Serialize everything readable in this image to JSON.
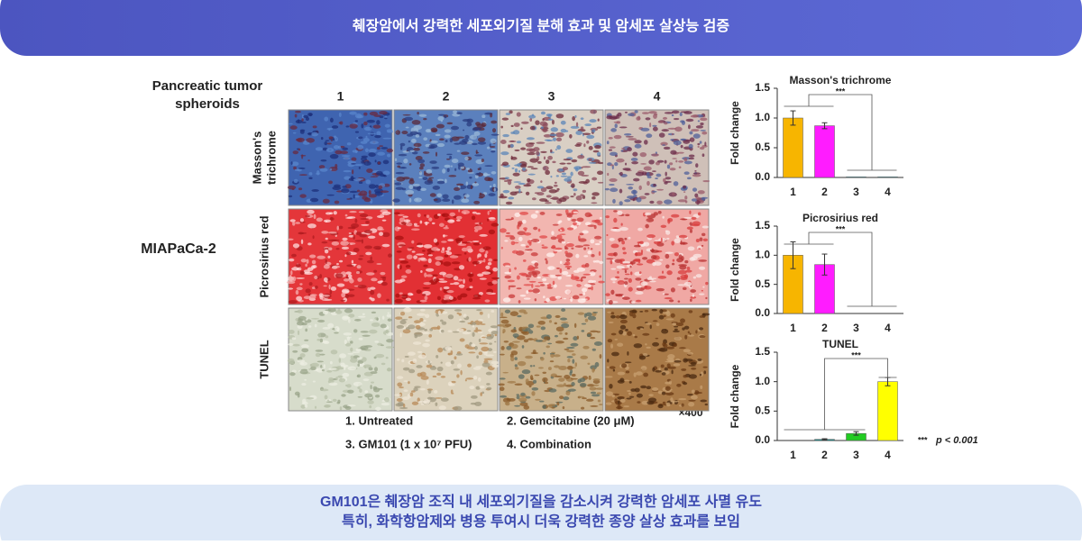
{
  "header": {
    "title": "췌장암에서 강력한 세포외기질 분해 효과 및 암세포 살상능 검증"
  },
  "figure": {
    "spheroid_label": [
      "Pancreatic tumor",
      "spheroids"
    ],
    "cell_line": "MIAPaCa-2",
    "columns": [
      "1",
      "2",
      "3",
      "4"
    ],
    "rows": [
      [
        "Masson's",
        "trichrome"
      ],
      [
        "Picrosirius red"
      ],
      [
        "TUNEL"
      ]
    ],
    "magnification": "×400",
    "legend": [
      "1. Untreated",
      "2. Gemcitabine (20 μM)",
      "3. GM101 (1 x 10⁷ PFU)",
      "4. Combination"
    ],
    "footnote": {
      "marker": "***",
      "text": "p < 0.001"
    }
  },
  "chart_data": [
    {
      "type": "bar",
      "title": "Masson's trichrome",
      "ylabel": "Fold change",
      "significance": "***",
      "categories": [
        "1",
        "2",
        "3",
        "4"
      ],
      "values": [
        1.0,
        0.87,
        0.01,
        0.01
      ],
      "errors": [
        0.12,
        0.05,
        0,
        0
      ],
      "colors": [
        "#f7b500",
        "#ff1cff",
        "#20b0c0",
        "#20b0c0"
      ],
      "ylim": [
        0,
        1.5
      ],
      "yticks": [
        {
          "value": 0,
          "label": "0.0"
        },
        0.5,
        {
          "value": 1,
          "label": "1.0"
        },
        1.5
      ]
    },
    {
      "type": "bar",
      "title": "Picrosirius red",
      "ylabel": "Fold change",
      "significance": "***",
      "categories": [
        "1",
        "2",
        "3",
        "4"
      ],
      "values": [
        1.0,
        0.84,
        0,
        0
      ],
      "errors": [
        0.23,
        0.18,
        0,
        0
      ],
      "colors": [
        "#f7b500",
        "#ff1cff",
        "#20b0c0",
        "#20b0c0"
      ],
      "ylim": [
        0,
        1.5
      ],
      "yticks": [
        {
          "value": 0,
          "label": "0.0"
        },
        0.5,
        {
          "value": 1,
          "label": "1.0"
        },
        1.5
      ]
    },
    {
      "type": "bar",
      "title": "TUNEL",
      "ylabel": "Fold change",
      "significance": "***",
      "categories": [
        "1",
        "2",
        "3",
        "4"
      ],
      "values": [
        0,
        0.02,
        0.12,
        1.0
      ],
      "errors": [
        0,
        0.01,
        0.03,
        0.07
      ],
      "colors": [
        "#f7b500",
        "#1a9090",
        "#22cc22",
        "#ffff00"
      ],
      "ylim": [
        0,
        1.5
      ],
      "yticks": [
        {
          "value": 0,
          "label": "0.0"
        },
        0.5,
        {
          "value": 1,
          "label": "1.0"
        },
        1.5
      ]
    }
  ],
  "footer": {
    "lines": [
      "GM101은 췌장암 조직 내 세포외기질을 감소시켜 강력한 암세포 사멸 유도",
      "특히, 화학항암제와 병용 투여시 더욱 강력한 종양 살상 효과를 보임"
    ]
  }
}
